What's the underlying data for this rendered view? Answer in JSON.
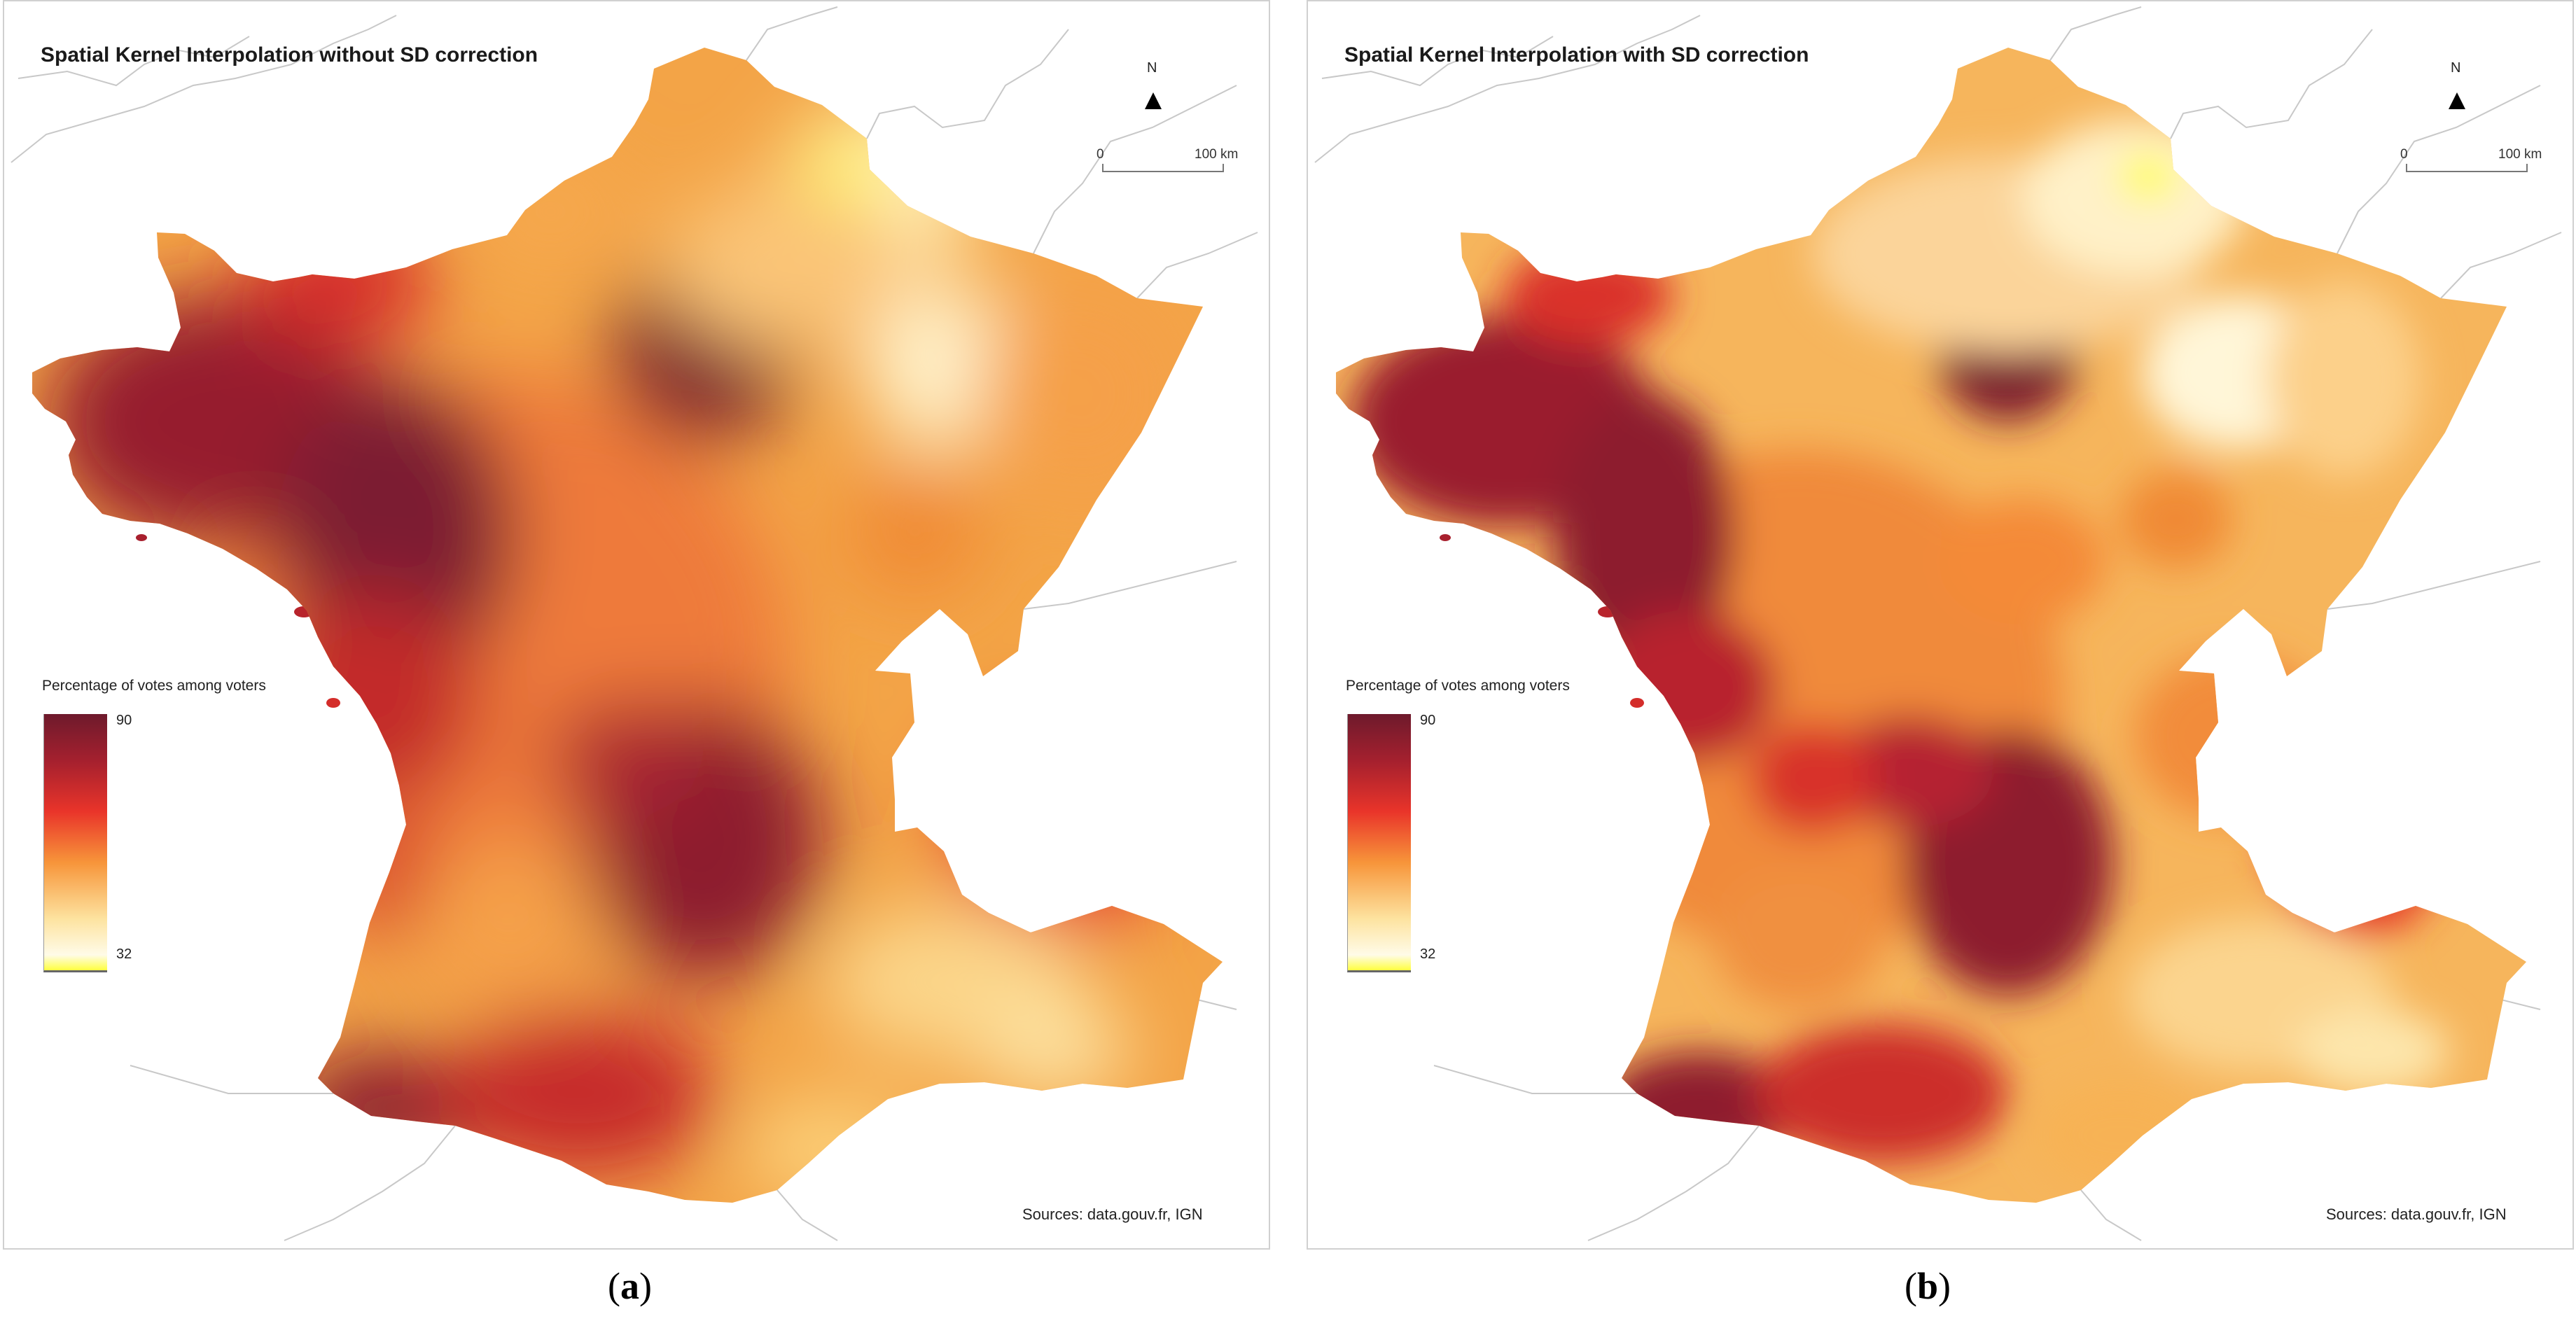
{
  "colors": {
    "ramp_max": "#7a1b2e",
    "ramp_high": "#e8322b",
    "ramp_mid": "#f7a03c",
    "ramp_low": "#fff1c0",
    "ramp_min": "#ffff00",
    "border_lines": "#c8c8c8"
  },
  "panels": [
    {
      "id": "a",
      "title": "Spatial Kernel Interpolation without SD correction",
      "north": "N",
      "scale_start": "0",
      "scale_end": "100 km",
      "legend_title": "Percentage of votes among voters",
      "legend_max": "90",
      "legend_min": "32",
      "sources": "Sources: data.gouv.fr, IGN",
      "caption_open": "(",
      "caption_letter": "a",
      "caption_close": ")"
    },
    {
      "id": "b",
      "title": "Spatial Kernel Interpolation with SD correction",
      "north": "N",
      "scale_start": "0",
      "scale_end": "100 km",
      "legend_title": "Percentage of votes among voters",
      "legend_max": "90",
      "legend_min": "32",
      "sources": "Sources: data.gouv.fr, IGN",
      "caption_open": "(",
      "caption_letter": "b",
      "caption_close": ")"
    }
  ]
}
